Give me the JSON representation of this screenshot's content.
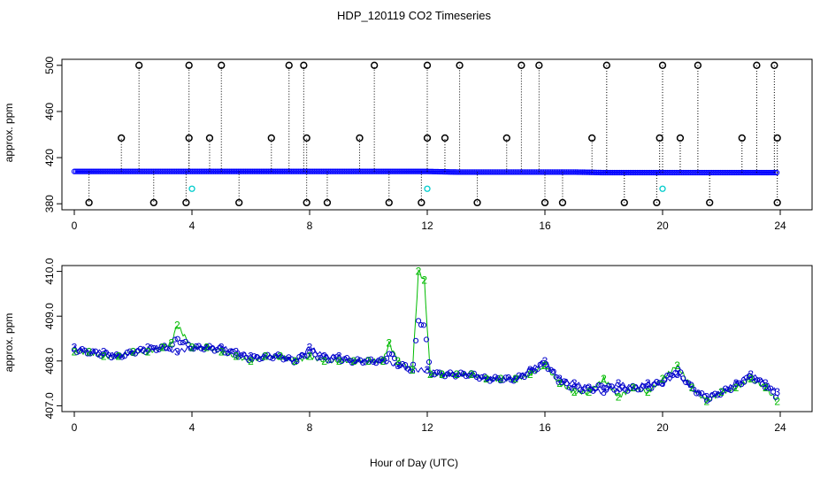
{
  "title": "HDP_120119  CO2 Timeseries",
  "xlabel": "Hour of Day (UTC)",
  "colors": {
    "avg": "#0000ff",
    "level2": "#00bb00",
    "level3": "#0000cc",
    "spike": "#000000",
    "cyan": "#00cccc"
  },
  "chart_data": [
    {
      "type": "scatter",
      "ylabel": "approx. ppm",
      "xlim": [
        0,
        24
      ],
      "ylim": [
        380,
        500
      ],
      "x_ticks": [
        "0",
        "4",
        "8",
        "12",
        "16",
        "20",
        "24"
      ],
      "y_ticks": [
        "380",
        "420",
        "460",
        "500"
      ],
      "baseline_series": {
        "name": "",
        "x": [
          0,
          1,
          2,
          3,
          4,
          5,
          6,
          7,
          8,
          9,
          10,
          11,
          12,
          13,
          14,
          15,
          16,
          17,
          18,
          19,
          20,
          21,
          22,
          23,
          23.9
        ],
        "y": [
          408,
          408,
          408,
          408,
          408,
          408,
          408,
          408,
          408,
          408,
          408,
          408,
          408,
          407.5,
          407.5,
          407.5,
          407.5,
          407.5,
          407,
          407,
          407,
          407,
          407,
          407,
          407
        ]
      },
      "high_points": {
        "x": [
          2.2,
          3.9,
          5.0,
          7.3,
          7.8,
          10.2,
          12.0,
          13.1,
          15.2,
          15.8,
          18.1,
          20.0,
          21.2,
          23.2,
          23.8
        ],
        "y": [
          500,
          500,
          500,
          500,
          500,
          500,
          500,
          500,
          500,
          500,
          500,
          500,
          500,
          500,
          500
        ]
      },
      "mid_points": {
        "x": [
          1.6,
          3.9,
          4.6,
          6.7,
          7.9,
          9.7,
          12.0,
          12.6,
          14.7,
          17.6,
          19.9,
          20.6,
          22.7,
          23.9
        ],
        "y": [
          437,
          437,
          437,
          437,
          437,
          437,
          437,
          437,
          437,
          437,
          437,
          437,
          437,
          437
        ]
      },
      "low_points": {
        "x": [
          0.5,
          2.7,
          3.8,
          5.6,
          7.9,
          8.6,
          10.7,
          11.8,
          13.7,
          16.0,
          16.6,
          18.7,
          19.8,
          21.6,
          23.9
        ],
        "y": [
          381,
          381,
          381,
          381,
          381,
          381,
          381,
          381,
          381,
          381,
          381,
          381,
          381,
          381,
          381
        ]
      },
      "cyan_points": {
        "x": [
          4.0,
          12.0,
          20.0
        ],
        "y": [
          393,
          393,
          393
        ]
      }
    },
    {
      "type": "line",
      "ylabel": "approx. ppm",
      "xlim": [
        0,
        24
      ],
      "ylim": [
        407.0,
        410.0
      ],
      "x_ticks": [
        "0",
        "4",
        "8",
        "12",
        "16",
        "20",
        "24"
      ],
      "y_ticks": [
        "407.0",
        "408.0",
        "409.0",
        "410.0"
      ],
      "series": [
        {
          "name": "",
          "marker": "3",
          "x": [
            0,
            0.5,
            1,
            1.5,
            2,
            2.5,
            3,
            3.5,
            4,
            4.5,
            5,
            5.5,
            6,
            6.5,
            7,
            7.5,
            8,
            8.5,
            9,
            9.5,
            10,
            10.5,
            11,
            11.5,
            12,
            12.5,
            13,
            13.5,
            14,
            14.5,
            15,
            15.5,
            16,
            16.5,
            17,
            17.5,
            18,
            18.5,
            19,
            19.5,
            20,
            20.5,
            21,
            21.5,
            22,
            22.5,
            23,
            23.5,
            23.9
          ],
          "y": [
            408.3,
            408.2,
            408.2,
            408.1,
            408.2,
            408.3,
            408.3,
            408.2,
            408.3,
            408.3,
            408.3,
            408.2,
            408.1,
            408.1,
            408.1,
            408.0,
            408.3,
            408.1,
            408.1,
            408.0,
            408.0,
            408.0,
            407.9,
            407.8,
            407.8,
            407.7,
            407.7,
            407.7,
            407.6,
            407.6,
            407.6,
            407.8,
            408.0,
            407.6,
            407.5,
            407.4,
            407.3,
            407.5,
            407.4,
            407.5,
            407.5,
            407.7,
            407.4,
            407.2,
            407.3,
            407.5,
            407.7,
            407.5,
            407.3
          ]
        },
        {
          "name": "",
          "marker": "2",
          "x": [
            0,
            0.5,
            1,
            1.5,
            2,
            2.5,
            3,
            3.3,
            3.5,
            4,
            4.5,
            5,
            5.5,
            6,
            6.5,
            7,
            7.5,
            8,
            8.5,
            9,
            9.5,
            10,
            10.5,
            10.7,
            11,
            11.5,
            11.7,
            11.9,
            12.1,
            12.5,
            13,
            13.5,
            14,
            14.5,
            15,
            15.5,
            16,
            16.5,
            17,
            17.5,
            18,
            18.5,
            19,
            19.5,
            20,
            20.5,
            21,
            21.5,
            22,
            22.5,
            23,
            23.5,
            23.9
          ],
          "y": [
            408.2,
            408.2,
            408.1,
            408.1,
            408.2,
            408.2,
            408.3,
            408.4,
            408.8,
            408.3,
            408.3,
            408.2,
            408.1,
            408.0,
            408.1,
            408.1,
            408.0,
            408.1,
            408.0,
            408.0,
            408.0,
            408.0,
            408.0,
            408.4,
            408.0,
            407.8,
            410.0,
            409.8,
            407.7,
            407.7,
            407.7,
            407.7,
            407.6,
            407.6,
            407.6,
            407.7,
            407.9,
            407.5,
            407.3,
            407.3,
            407.6,
            407.2,
            407.4,
            407.3,
            407.6,
            407.9,
            407.4,
            407.1,
            407.3,
            407.4,
            407.6,
            407.4,
            407.1
          ]
        }
      ]
    }
  ]
}
